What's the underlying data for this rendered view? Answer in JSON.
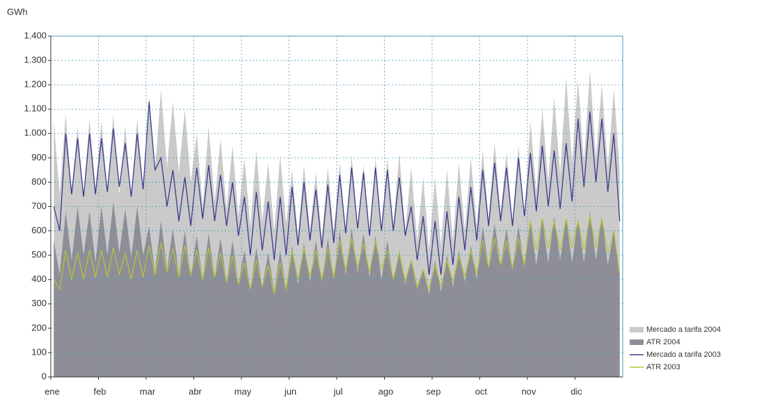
{
  "chart_data": {
    "type": "area-line",
    "y_label": "GWh",
    "categories": [
      "ene",
      null,
      null,
      null,
      null,
      null,
      null,
      null,
      "feb",
      null,
      null,
      null,
      null,
      null,
      null,
      null,
      "mar",
      null,
      null,
      null,
      null,
      null,
      null,
      null,
      "abr",
      null,
      null,
      null,
      null,
      null,
      null,
      null,
      "may",
      null,
      null,
      null,
      null,
      null,
      null,
      null,
      "jun",
      null,
      null,
      null,
      null,
      null,
      null,
      null,
      "jul",
      null,
      null,
      null,
      null,
      null,
      null,
      null,
      "ago",
      null,
      null,
      null,
      null,
      null,
      null,
      null,
      "sep",
      null,
      null,
      null,
      null,
      null,
      null,
      null,
      "oct",
      null,
      null,
      null,
      null,
      null,
      null,
      null,
      "nov",
      null,
      null,
      null,
      null,
      null,
      null,
      null,
      "dic",
      null,
      null,
      null,
      null,
      null,
      null,
      null
    ],
    "ylim": [
      0,
      1400
    ],
    "yticks": [
      0,
      100,
      200,
      300,
      400,
      500,
      600,
      700,
      800,
      900,
      {
        "value": 1000,
        "label": "1.000"
      },
      {
        "value": 1100,
        "label": "1.100"
      },
      {
        "value": 1200,
        "label": "1.200"
      },
      {
        "value": 1300,
        "label": "1.300"
      },
      {
        "value": 1400,
        "label": "1.400"
      }
    ],
    "grid": true,
    "legend": "bottom-right",
    "series": [
      {
        "name": "Mercado a tarifa 2004",
        "color": "#cacaca",
        "mark": "area",
        "values": [
          1050,
          750,
          1080,
          760,
          1030,
          740,
          1060,
          770,
          1050,
          760,
          1080,
          750,
          1030,
          740,
          1060,
          760,
          1150,
          850,
          1180,
          860,
          1130,
          840,
          1100,
          800,
          1000,
          700,
          1030,
          720,
          980,
          690,
          950,
          660,
          900,
          620,
          930,
          640,
          880,
          600,
          910,
          630,
          850,
          580,
          870,
          600,
          840,
          570,
          860,
          590,
          880,
          600,
          910,
          620,
          870,
          590,
          900,
          610,
          900,
          620,
          920,
          600,
          860,
          560,
          820,
          520,
          820,
          540,
          850,
          560,
          880,
          600,
          900,
          620,
          930,
          650,
          960,
          670,
          920,
          640,
          950,
          660,
          1050,
          760,
          1100,
          800,
          1150,
          830,
          1230,
          880,
          1220,
          880,
          1260,
          900,
          1200,
          860,
          1180,
          850
        ]
      },
      {
        "name": "ATR 2004",
        "color": "#8e8e98",
        "mark": "area",
        "values": [
          560,
          420,
          680,
          480,
          700,
          500,
          680,
          470,
          700,
          500,
          720,
          510,
          690,
          490,
          700,
          500,
          620,
          430,
          640,
          440,
          610,
          420,
          600,
          410,
          580,
          400,
          590,
          410,
          570,
          390,
          560,
          380,
          520,
          360,
          530,
          370,
          510,
          350,
          520,
          360,
          540,
          380,
          550,
          390,
          560,
          390,
          570,
          400,
          600,
          420,
          610,
          430,
          590,
          410,
          580,
          400,
          560,
          400,
          520,
          380,
          480,
          360,
          440,
          340,
          480,
          350,
          500,
          370,
          520,
          390,
          540,
          400,
          620,
          450,
          630,
          460,
          610,
          440,
          620,
          450,
          640,
          460,
          650,
          470,
          660,
          480,
          650,
          470,
          650,
          470,
          680,
          480,
          660,
          460,
          600,
          420
        ]
      },
      {
        "name": "Mercado a tarifa 2003",
        "color": "#3a3a8c",
        "mark": "line",
        "values": [
          700,
          600,
          1000,
          750,
          980,
          740,
          1000,
          750,
          980,
          760,
          1020,
          780,
          960,
          740,
          1000,
          770,
          1130,
          850,
          900,
          700,
          850,
          640,
          820,
          620,
          860,
          650,
          870,
          640,
          830,
          620,
          800,
          580,
          740,
          500,
          760,
          520,
          720,
          480,
          740,
          500,
          780,
          540,
          800,
          560,
          770,
          530,
          790,
          550,
          830,
          590,
          860,
          610,
          840,
          580,
          860,
          600,
          850,
          600,
          820,
          580,
          700,
          480,
          660,
          420,
          640,
          420,
          680,
          460,
          740,
          520,
          780,
          560,
          850,
          620,
          880,
          640,
          860,
          620,
          900,
          660,
          920,
          680,
          950,
          700,
          930,
          690,
          960,
          720,
          1060,
          780,
          1090,
          800,
          1060,
          760,
          1000,
          640
        ]
      },
      {
        "name": "ATR 2003",
        "color": "#b8c23c",
        "mark": "line",
        "values": [
          400,
          360,
          520,
          400,
          510,
          400,
          520,
          410,
          520,
          410,
          530,
          420,
          510,
          400,
          520,
          410,
          540,
          420,
          550,
          430,
          530,
          410,
          540,
          420,
          520,
          400,
          530,
          410,
          510,
          390,
          500,
          380,
          470,
          360,
          480,
          370,
          460,
          340,
          470,
          360,
          520,
          400,
          530,
          410,
          520,
          400,
          530,
          410,
          560,
          440,
          570,
          450,
          550,
          430,
          560,
          440,
          520,
          400,
          510,
          390,
          480,
          370,
          440,
          360,
          460,
          370,
          480,
          390,
          500,
          410,
          520,
          420,
          560,
          450,
          570,
          460,
          560,
          450,
          570,
          460,
          640,
          520,
          650,
          530,
          640,
          520,
          650,
          530,
          640,
          520,
          660,
          530,
          650,
          510,
          600,
          420
        ]
      }
    ]
  }
}
